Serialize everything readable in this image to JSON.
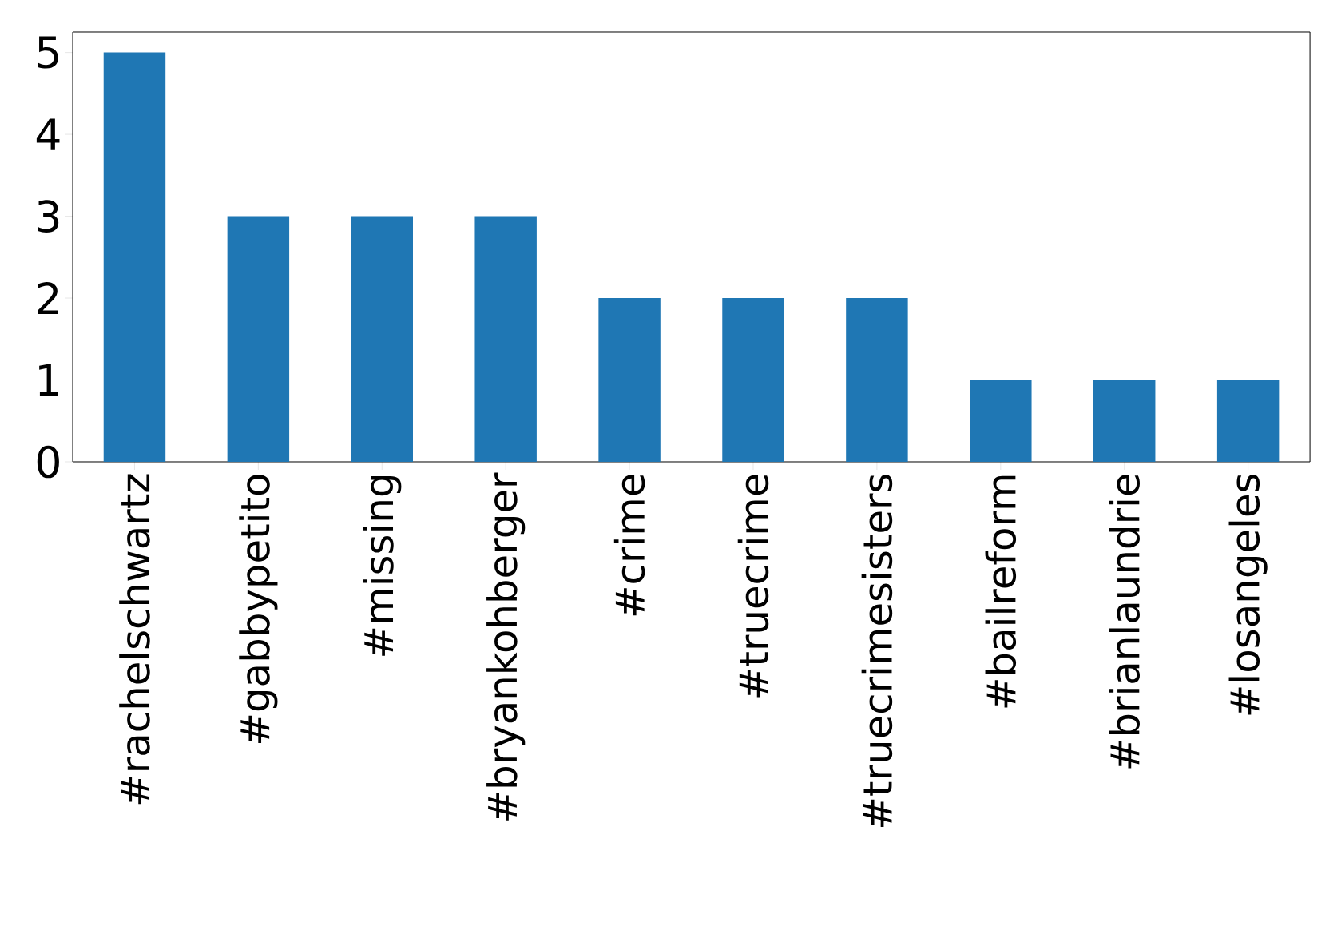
{
  "chart_data": {
    "type": "bar",
    "categories": [
      "#rachelschwartz",
      "#gabbypetito",
      "#missing",
      "#bryankohberger",
      "#crime",
      "#truecrime",
      "#truecrimesisters",
      "#bailreform",
      "#brianlaundrie",
      "#losangeles"
    ],
    "values": [
      5,
      3,
      3,
      3,
      2,
      2,
      2,
      1,
      1,
      1
    ],
    "color": "#1f77b4",
    "ylim": [
      0,
      5.25
    ],
    "yticks": [
      0,
      1,
      2,
      3,
      4,
      5
    ]
  }
}
